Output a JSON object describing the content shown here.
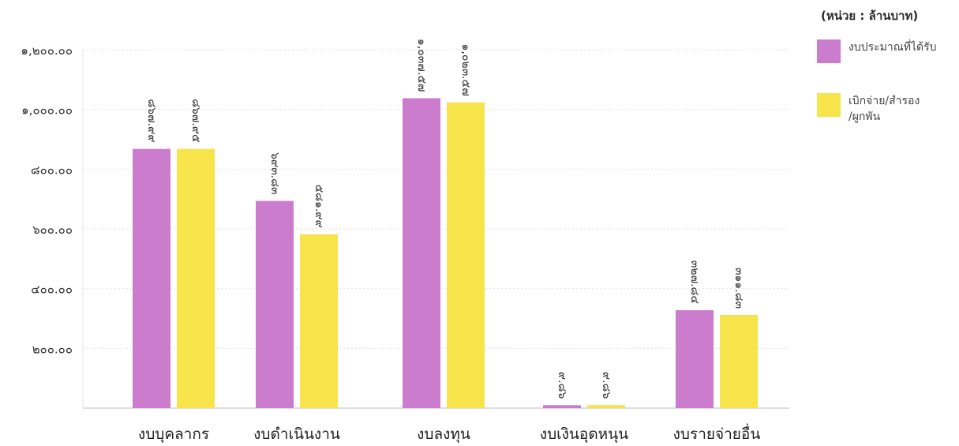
{
  "unit_label": "(หน่วย : ล้านบาท)",
  "colors": {
    "series1": "#cc7ccc",
    "series2": "#f7e34a",
    "grid": "#e2e2e2"
  },
  "legend": [
    {
      "label": "งบประมาณที่ได้รับ"
    },
    {
      "label": "เบิกจ่าย/สำรอง\n/ผูกพัน"
    }
  ],
  "chart_data": {
    "type": "bar",
    "categories": [
      "งบบุคลากร",
      "งบดำเนินงาน",
      "งบลงทุน",
      "งบเงินอุดหนุน",
      "งบรายจ่ายอื่น"
    ],
    "ylim": [
      0,
      1200
    ],
    "yticks": [
      200,
      400,
      600,
      800,
      1000,
      1200
    ],
    "ytick_labels": [
      "๒๐๐.๐๐",
      "๔๐๐.๐๐",
      "๖๐๐.๐๐",
      "๘๐๐.๐๐",
      "๑,๐๐๐.๐๐",
      "๑,๒๐๐.๐๐"
    ],
    "series": [
      {
        "name": "งบประมาณที่ได้รับ",
        "values": [
          867.99,
          693.83,
          1037.57,
          9.86,
          327.84
        ],
        "labels": [
          "๘๖๗.๙๙",
          "๖๙๓.๘๓",
          "๑,๐๓๗.๕๗",
          "๙.๘๖",
          "๓๒๗.๘๔"
        ]
      },
      {
        "name": "เบิกจ่าย/สำรอง/ผูกพัน",
        "values": [
          867.95,
          581.99,
          1023.57,
          9.86,
          311.83
        ],
        "labels": [
          "๘๖๗.๙๕",
          "๕๘๑.๙๙",
          "๑,๐๒๓.๕๗",
          "๙.๘๖",
          "๓๑๑.๘๓"
        ]
      }
    ],
    "grid": true,
    "legend_position": "top-right"
  }
}
